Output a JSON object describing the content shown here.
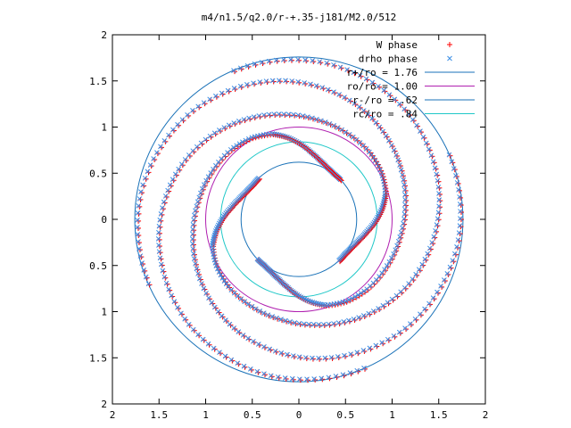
{
  "chart_data": {
    "type": "scatter",
    "title": "m4/n1.5/q2.0/r-+.35-j181/M2.0/512",
    "xlim": [
      -2,
      2
    ],
    "ylim": [
      -2,
      2
    ],
    "x_ticks": [
      -2,
      -1.5,
      -1,
      -0.5,
      0,
      0.5,
      1,
      1.5,
      2
    ],
    "y_ticks": [
      -2,
      -1.5,
      -1,
      -0.5,
      0,
      0.5,
      1,
      1.5,
      2
    ],
    "x_tick_labels": [
      "2",
      "1.5",
      "1",
      "0.5",
      "0",
      "0.5",
      "1",
      "1.5",
      "2"
    ],
    "y_tick_labels": [
      "2",
      "1.5",
      "1",
      "0.5",
      "0",
      "0.5",
      "1",
      "1.5",
      "2"
    ],
    "grid": false,
    "legend_position": "top-right",
    "series": [
      {
        "name": "W phase",
        "kind": "points",
        "marker": "+",
        "color": "#ff0000"
      },
      {
        "name": "drho phase",
        "kind": "points",
        "marker": "x",
        "color": "#3a8ee6"
      },
      {
        "name": "r+/ro = 1.76",
        "kind": "circle",
        "radius": 1.76,
        "color": "#1a72b8"
      },
      {
        "name": "ro/ro = 1.00",
        "kind": "circle",
        "radius": 1.0,
        "color": "#b020b0"
      },
      {
        "name": "r-/ro = .62",
        "kind": "circle",
        "radius": 0.62,
        "color": "#1a72b8"
      },
      {
        "name": "rc/ro = .84",
        "kind": "circle",
        "radius": 0.84,
        "color": "#20c8c8"
      }
    ],
    "spiral_arms": 4,
    "arm_path": [
      [
        0.62,
        0.0
      ],
      [
        0.62,
        0.05
      ],
      [
        0.64,
        0.1
      ],
      [
        0.68,
        0.15
      ],
      [
        0.74,
        0.2
      ],
      [
        0.82,
        0.25
      ],
      [
        0.9,
        0.3
      ],
      [
        0.97,
        0.35
      ],
      [
        1.02,
        0.42
      ],
      [
        1.05,
        0.5
      ],
      [
        1.07,
        0.6
      ],
      [
        1.1,
        0.7
      ],
      [
        1.15,
        0.8
      ],
      [
        1.22,
        0.9
      ],
      [
        1.3,
        1.0
      ],
      [
        1.38,
        1.1
      ],
      [
        1.45,
        1.2
      ],
      [
        1.52,
        1.3
      ],
      [
        1.58,
        1.4
      ],
      [
        1.64,
        1.5
      ],
      [
        1.68,
        1.6
      ],
      [
        1.72,
        1.7
      ],
      [
        1.74,
        1.8
      ],
      [
        1.76,
        1.9
      ]
    ],
    "arm_angle_offset_deg": 44
  }
}
